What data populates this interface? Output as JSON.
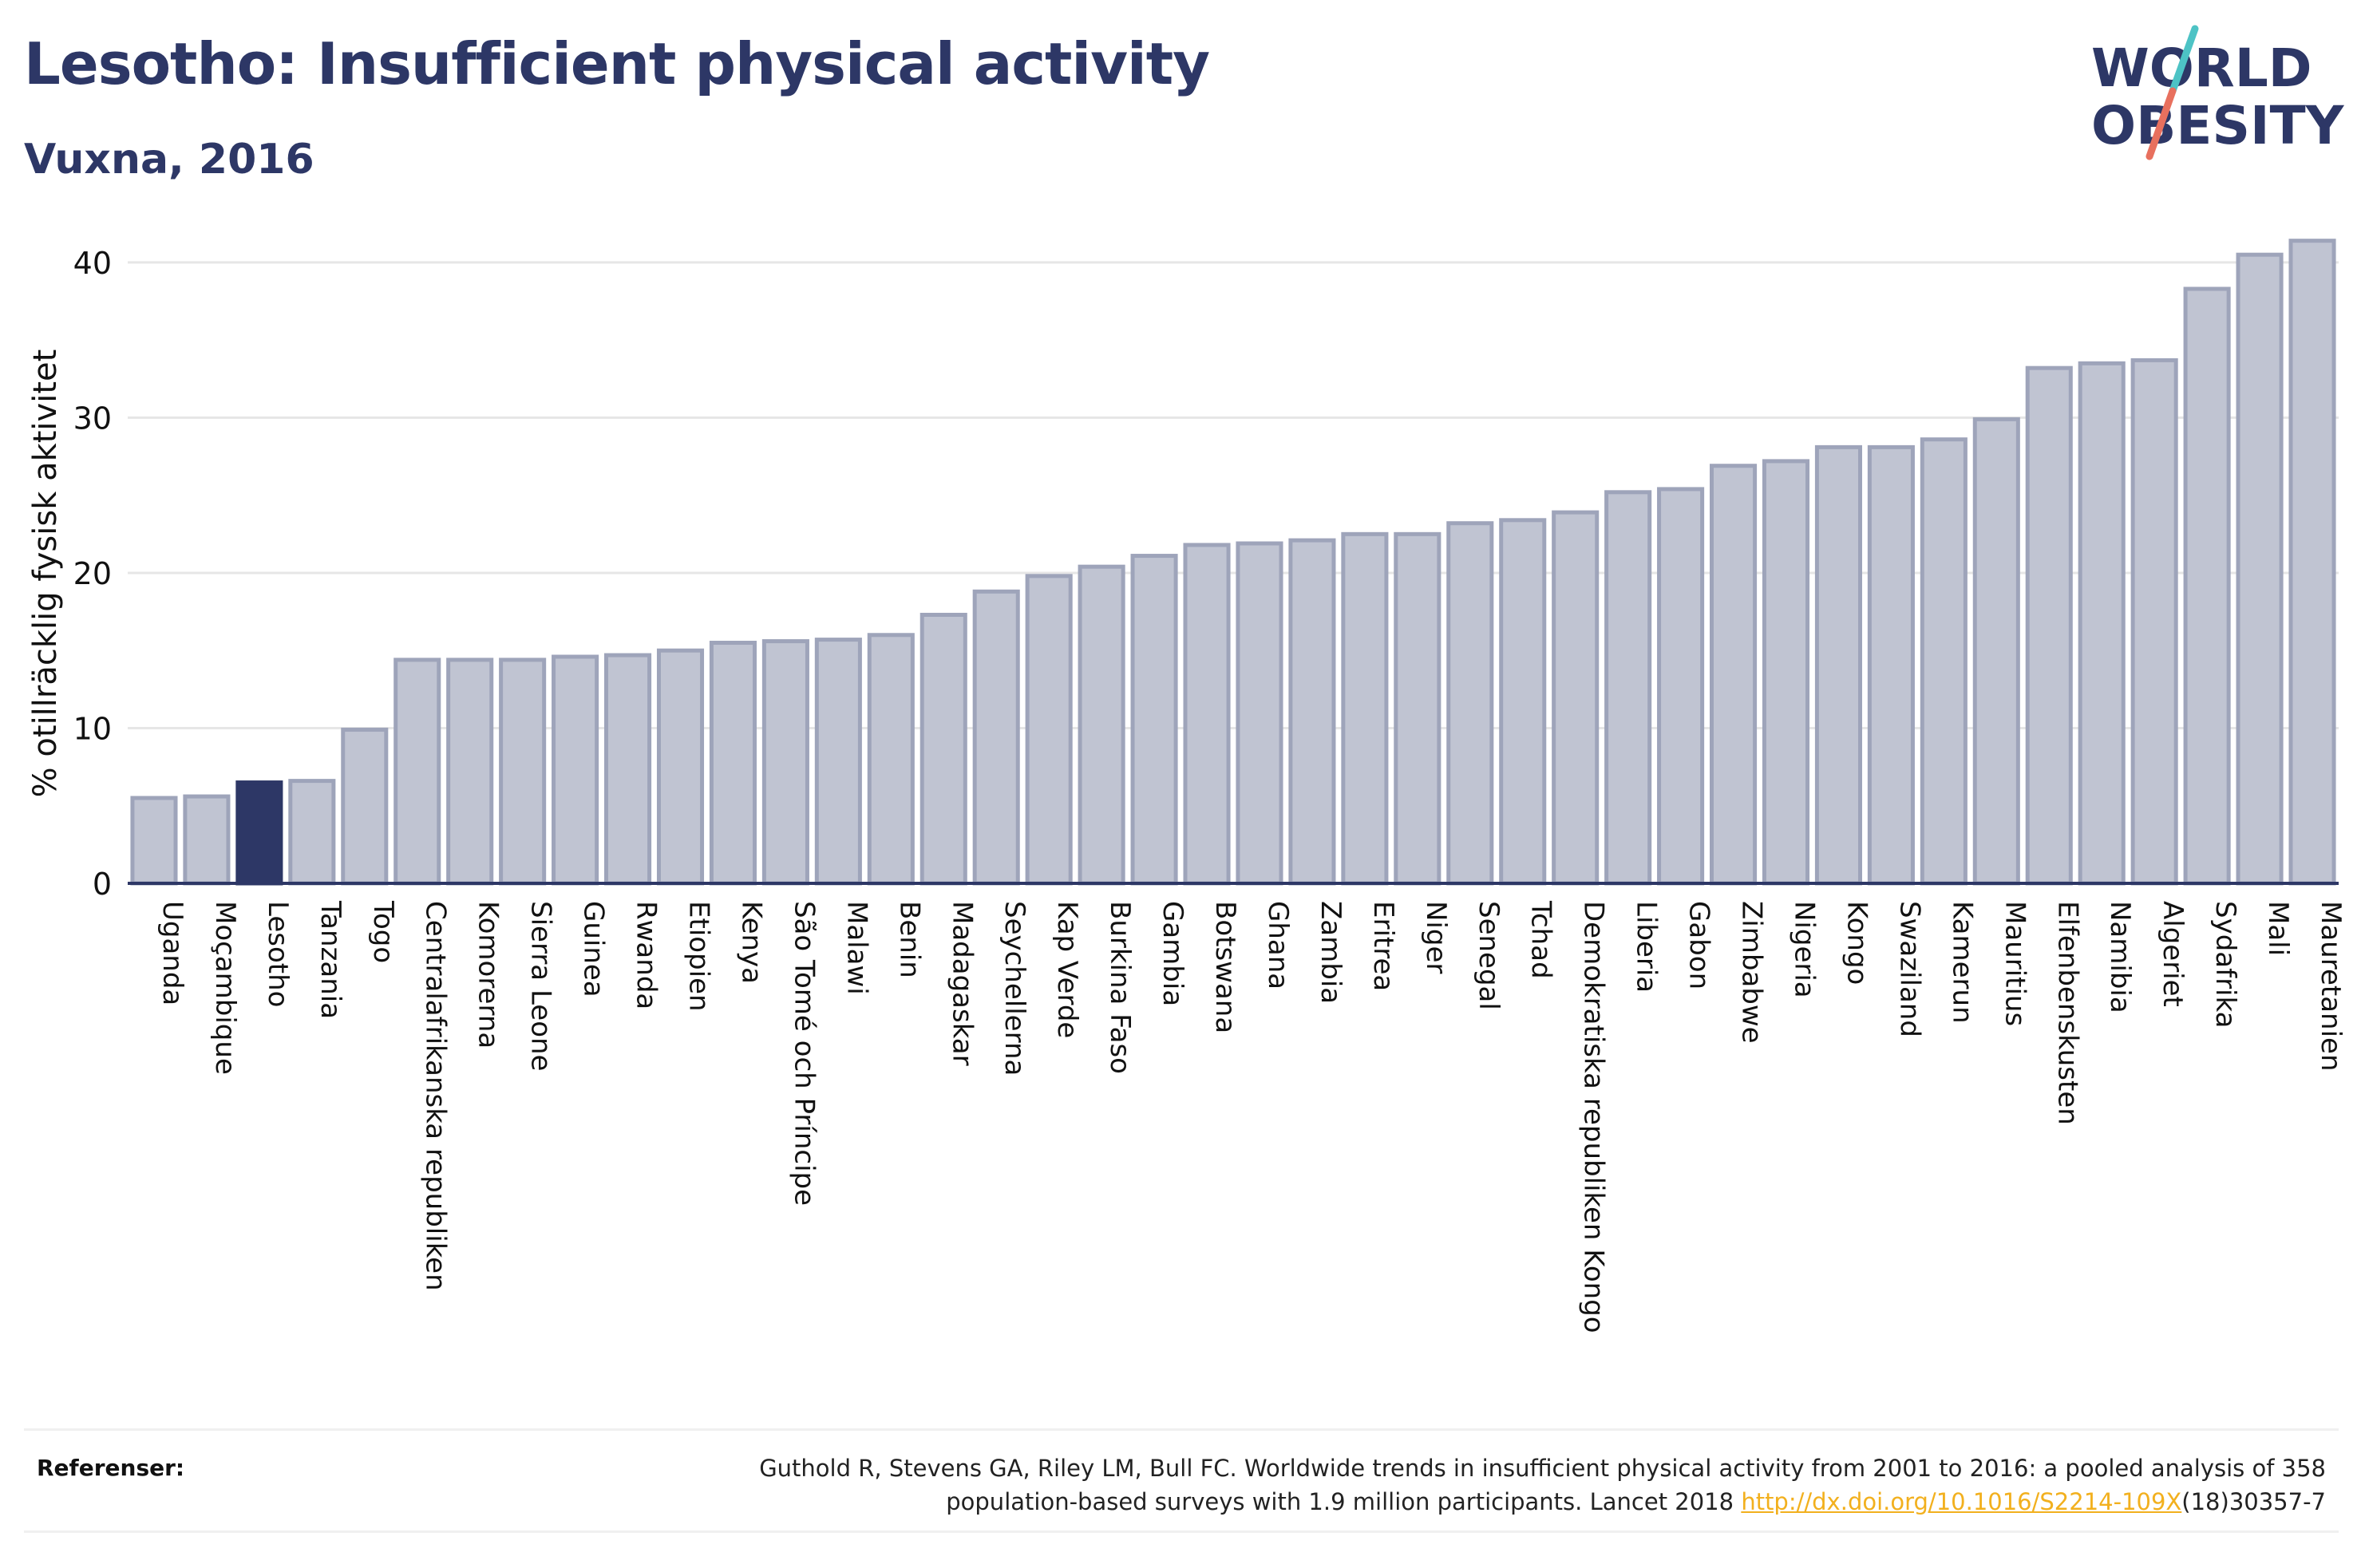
{
  "header": {
    "title": "Lesotho: Insufficient physical activity",
    "subtitle": "Vuxna, 2016"
  },
  "logo": {
    "line1": "WORLD",
    "line2": "OBESITY",
    "slash_colors": [
      "#4dc3c5",
      "#e8705e"
    ]
  },
  "colors": {
    "bar_default": "#c0c4d2",
    "bar_default_stroke": "#9ea4ba",
    "bar_highlight": "#2d3766",
    "grid": "#e6e6e6",
    "axis": "#2d3766",
    "text": "#2d3766",
    "link": "#f2b01e"
  },
  "chart_data": {
    "type": "bar",
    "ylabel": "% otillräcklig fysisk aktivitet",
    "xlabel": "",
    "ylim": [
      0,
      42
    ],
    "yticks": [
      0,
      10,
      20,
      30,
      40
    ],
    "grid": true,
    "highlight": "Lesotho",
    "categories": [
      "Uganda",
      "Moçambique",
      "Lesotho",
      "Tanzania",
      "Togo",
      "Centralafrikanska republiken",
      "Komorerna",
      "Sierra Leone",
      "Guinea",
      "Rwanda",
      "Etiopien",
      "Kenya",
      "São Tomé och Príncipe",
      "Malawi",
      "Benin",
      "Madagaskar",
      "Seychellerna",
      "Kap Verde",
      "Burkina Faso",
      "Gambia",
      "Botswana",
      "Ghana",
      "Zambia",
      "Eritrea",
      "Niger",
      "Senegal",
      "Tchad",
      "Demokratiska republiken Kongo",
      "Liberia",
      "Gabon",
      "Zimbabwe",
      "Nigeria",
      "Kongo",
      "Swaziland",
      "Kamerun",
      "Mauritius",
      "Elfenbenskusten",
      "Namibia",
      "Algeriet",
      "Sydafrika",
      "Mali",
      "Mauretanien"
    ],
    "values": [
      5.5,
      5.6,
      6.5,
      6.6,
      9.9,
      14.4,
      14.4,
      14.4,
      14.6,
      14.7,
      15.0,
      15.5,
      15.6,
      15.7,
      16.0,
      17.3,
      18.8,
      19.8,
      20.4,
      21.1,
      21.8,
      21.9,
      22.1,
      22.5,
      22.5,
      23.2,
      23.4,
      23.9,
      25.2,
      25.4,
      26.9,
      27.2,
      28.1,
      28.1,
      28.6,
      29.9,
      33.2,
      33.5,
      33.7,
      38.3,
      40.5,
      41.4
    ]
  },
  "references": {
    "label": "Referenser:",
    "text_line1": "Guthold R, Stevens GA, Riley LM, Bull FC. Worldwide trends in insufficient physical activity from 2001 to 2016: a pooled analysis of 358",
    "text_line2_prefix": "population-based surveys with 1.9 million participants. Lancet 2018 ",
    "link_text": "http://dx.doi.org/10.1016/S2214-109X",
    "text_line2_suffix": "(18)30357-7"
  }
}
